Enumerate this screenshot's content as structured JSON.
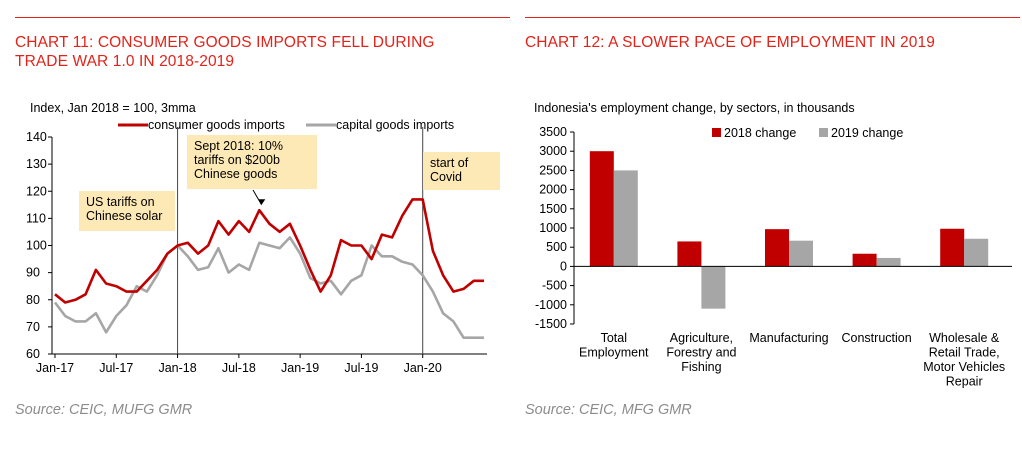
{
  "colors": {
    "accent": "#e2231a",
    "series_red": "#c00000",
    "series_gray": "#a6a6a6",
    "annotation_bg": "#fde9b6",
    "source_text": "#8c8c8c"
  },
  "chart11": {
    "title_line1": "CHART 11: CONSUMER GOODS IMPORTS FELL DURING",
    "title_line2": "TRADE WAR 1.0 IN 2018-2019",
    "source": "Source: CEIC, MUFG GMR"
  },
  "chart12": {
    "title": "CHART 12: A SLOWER PACE OF EMPLOYMENT IN 2019",
    "source": "Source: CEIC, MFG GMR"
  },
  "chart_data": [
    {
      "type": "line",
      "title": "CHART 11: CONSUMER GOODS IMPORTS FELL DURING TRADE WAR 1.0 IN 2018-2019",
      "ylabel": "Index, Jan 2018 = 100, 3mma",
      "ylim": [
        60,
        140
      ],
      "yticks": [
        60,
        70,
        80,
        90,
        100,
        110,
        120,
        130,
        140
      ],
      "x_tick_labels": [
        "Jan-17",
        "Jul-17",
        "Jan-18",
        "Jul-18",
        "Jan-19",
        "Jul-19",
        "Jan-20"
      ],
      "x": [
        "Jan-17",
        "Feb-17",
        "Mar-17",
        "Apr-17",
        "May-17",
        "Jun-17",
        "Jul-17",
        "Aug-17",
        "Sep-17",
        "Oct-17",
        "Nov-17",
        "Dec-17",
        "Jan-18",
        "Feb-18",
        "Mar-18",
        "Apr-18",
        "May-18",
        "Jun-18",
        "Jul-18",
        "Aug-18",
        "Sep-18",
        "Oct-18",
        "Nov-18",
        "Dec-18",
        "Jan-19",
        "Feb-19",
        "Mar-19",
        "Apr-19",
        "May-19",
        "Jun-19",
        "Jul-19",
        "Aug-19",
        "Sep-19",
        "Oct-19",
        "Nov-19",
        "Dec-19",
        "Jan-20",
        "Feb-20",
        "Mar-20",
        "Apr-20",
        "May-20",
        "Jun-20",
        "Jul-20"
      ],
      "legend_position": "top",
      "grid": false,
      "series": [
        {
          "name": "consumer goods imports",
          "color": "#c00000",
          "values": [
            82,
            79,
            80,
            82,
            91,
            86,
            85,
            83,
            83,
            87,
            91,
            97,
            100,
            101,
            97,
            100,
            109,
            104,
            109,
            105,
            113,
            108,
            105,
            108,
            100,
            91,
            83,
            89,
            102,
            100,
            100,
            95,
            104,
            103,
            111,
            117,
            117,
            98,
            89,
            83,
            84,
            87,
            87
          ]
        },
        {
          "name": "capital goods imports",
          "color": "#a6a6a6",
          "values": [
            79,
            74,
            72,
            72,
            75,
            68,
            74,
            78,
            85,
            83,
            89,
            97,
            100,
            96,
            91,
            92,
            99,
            90,
            93,
            91,
            101,
            100,
            99,
            103,
            97,
            88,
            86,
            87,
            82,
            87,
            89,
            100,
            96,
            96,
            94,
            93,
            89,
            83,
            75,
            72,
            66,
            66,
            66
          ]
        }
      ],
      "annotations": [
        {
          "text": [
            "US tariffs on",
            "Chinese solar"
          ],
          "x": "Feb-17"
        },
        {
          "text": [
            "Sept 2018: 10%",
            "tariffs on $200b",
            "Chinese goods"
          ],
          "x": "Sep-18"
        },
        {
          "text": [
            "start of",
            "Covid"
          ],
          "x": "Jan-20"
        }
      ],
      "vlines": [
        "Jan-18",
        "Jan-20"
      ]
    },
    {
      "type": "bar",
      "title": "CHART 12: A SLOWER PACE OF EMPLOYMENT IN 2019",
      "subtitle": "Indonesia's employment change, by sectors, in thousands",
      "categories": [
        [
          "Total",
          "Employment"
        ],
        [
          "Agriculture,",
          "Forestry and",
          "Fishing"
        ],
        [
          "Manufacturing"
        ],
        [
          "Construction"
        ],
        [
          "Wholesale &",
          "Retail Trade,",
          "Motor Vehicles",
          "Repair"
        ]
      ],
      "ylim": [
        -1500,
        3500
      ],
      "yticks": [
        -1500,
        -1000,
        -500,
        0,
        500,
        1000,
        1500,
        2000,
        2500,
        3000,
        3500
      ],
      "legend_position": "top",
      "grid": false,
      "series": [
        {
          "name": "2018 change",
          "color": "#c00000",
          "values": [
            3000,
            650,
            970,
            330,
            980
          ]
        },
        {
          "name": "2019 change",
          "color": "#a6a6a6",
          "values": [
            2500,
            -1100,
            670,
            220,
            720
          ]
        }
      ]
    }
  ]
}
